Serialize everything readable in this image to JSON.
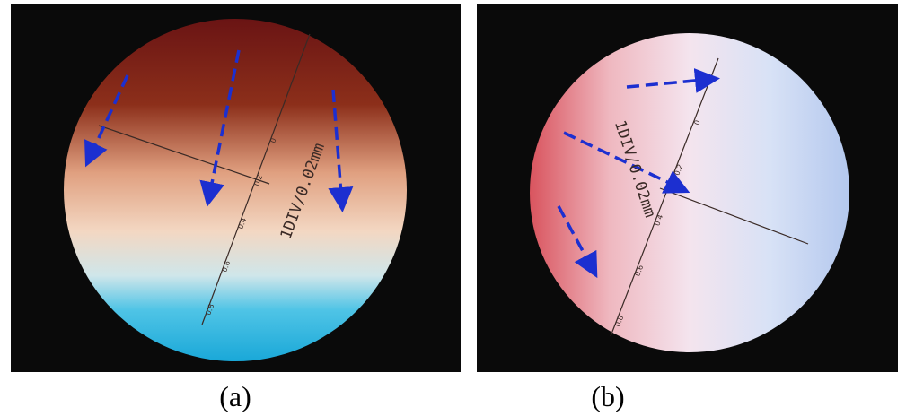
{
  "panels": [
    {
      "caption": "(a)",
      "scale_text": "1DIV/0.02mm",
      "scale_ticks": [
        "0",
        "0.2",
        "0.4",
        "0.6",
        "0.8"
      ]
    },
    {
      "caption": "(b)",
      "scale_text": "1DIV/0.02mm",
      "scale_ticks": [
        "0",
        "0.2",
        "0.4",
        "0.6",
        "0.8"
      ]
    }
  ]
}
